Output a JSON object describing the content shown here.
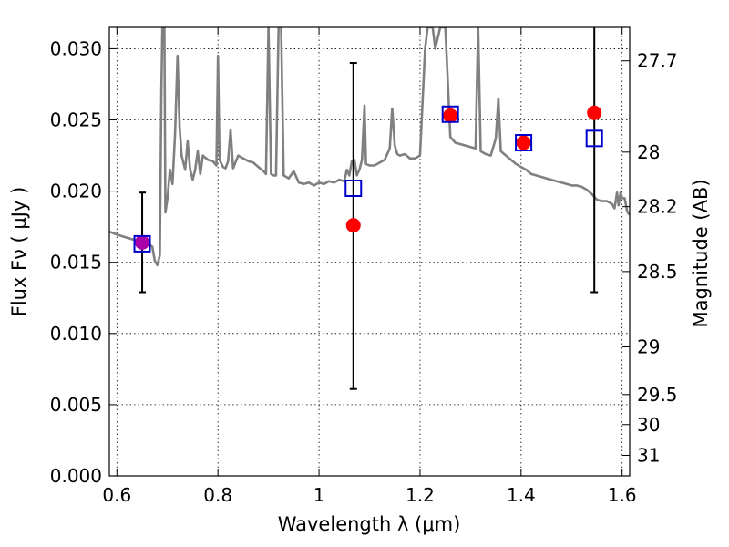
{
  "chart_data": {
    "type": "scatter",
    "xlabel": "Wavelength  λ (μm)",
    "ylabel": "Flux  Fν  ( μJy )",
    "y2label": "Magnitude (AB)",
    "xlim": [
      0.585,
      1.615
    ],
    "ylim": [
      0.0,
      0.0315
    ],
    "grid": true,
    "grid_style": "dotted",
    "x_ticks": [
      {
        "value": 0.6,
        "label": "0.6"
      },
      {
        "value": 0.8,
        "label": "0.8"
      },
      {
        "value": 1.0,
        "label": "1"
      },
      {
        "value": 1.2,
        "label": "1.2"
      },
      {
        "value": 1.4,
        "label": "1.4"
      },
      {
        "value": 1.6,
        "label": "1.6"
      }
    ],
    "y_ticks": [
      {
        "value": 0.0,
        "label": "0.000"
      },
      {
        "value": 0.005,
        "label": "0.005"
      },
      {
        "value": 0.01,
        "label": "0.010"
      },
      {
        "value": 0.015,
        "label": "0.015"
      },
      {
        "value": 0.02,
        "label": "0.020"
      },
      {
        "value": 0.025,
        "label": "0.025"
      },
      {
        "value": 0.03,
        "label": "0.030"
      }
    ],
    "y2_ticks": [
      {
        "flux": 0.02915,
        "label": "27.7"
      },
      {
        "flux": 0.02274,
        "label": "28"
      },
      {
        "flux": 0.01891,
        "label": "28.2"
      },
      {
        "flux": 0.01435,
        "label": "28.5"
      },
      {
        "flux": 0.00906,
        "label": "29"
      },
      {
        "flux": 0.00571,
        "label": "29.5"
      },
      {
        "flux": 0.0036,
        "label": "30"
      },
      {
        "flux": 0.00144,
        "label": "31"
      }
    ],
    "colors": {
      "model": "#808080",
      "observed": "#ff0000",
      "observed_v": "#aa00aa",
      "model_photometry": "#0000cc",
      "errorbar": "#000000",
      "frame": "#000000"
    },
    "series": [
      {
        "kind": "line",
        "points": [
          [
            0.585,
            0.01715
          ],
          [
            0.6,
            0.01695
          ],
          [
            0.62,
            0.01672
          ],
          [
            0.64,
            0.01652
          ],
          [
            0.66,
            0.01635
          ],
          [
            0.67,
            0.0161
          ],
          [
            0.675,
            0.0151
          ],
          [
            0.68,
            0.0148
          ],
          [
            0.685,
            0.0155
          ],
          [
            0.688,
            0.027
          ],
          [
            0.69,
            0.0315
          ],
          [
            0.694,
            0.0315
          ],
          [
            0.696,
            0.0185
          ],
          [
            0.7,
            0.0195
          ],
          [
            0.705,
            0.0215
          ],
          [
            0.71,
            0.0205
          ],
          [
            0.715,
            0.024
          ],
          [
            0.72,
            0.0295
          ],
          [
            0.724,
            0.0245
          ],
          [
            0.728,
            0.0225
          ],
          [
            0.735,
            0.0215
          ],
          [
            0.74,
            0.0235
          ],
          [
            0.745,
            0.0215
          ],
          [
            0.75,
            0.0208
          ],
          [
            0.755,
            0.0215
          ],
          [
            0.76,
            0.0228
          ],
          [
            0.765,
            0.0212
          ],
          [
            0.77,
            0.0225
          ],
          [
            0.78,
            0.0222
          ],
          [
            0.79,
            0.0221
          ],
          [
            0.797,
            0.0218
          ],
          [
            0.8,
            0.0295
          ],
          [
            0.803,
            0.0222
          ],
          [
            0.81,
            0.0217
          ],
          [
            0.815,
            0.0216
          ],
          [
            0.82,
            0.0221
          ],
          [
            0.825,
            0.0243
          ],
          [
            0.83,
            0.0216
          ],
          [
            0.84,
            0.0225
          ],
          [
            0.85,
            0.0223
          ],
          [
            0.86,
            0.0221
          ],
          [
            0.87,
            0.022
          ],
          [
            0.88,
            0.0217
          ],
          [
            0.89,
            0.0214
          ],
          [
            0.895,
            0.0212
          ],
          [
            0.9,
            0.0315
          ],
          [
            0.905,
            0.0212
          ],
          [
            0.91,
            0.0211
          ],
          [
            0.915,
            0.0211
          ],
          [
            0.92,
            0.0315
          ],
          [
            0.925,
            0.0315
          ],
          [
            0.93,
            0.0211
          ],
          [
            0.94,
            0.0209
          ],
          [
            0.95,
            0.0214
          ],
          [
            0.96,
            0.0206
          ],
          [
            0.97,
            0.0205
          ],
          [
            0.98,
            0.0206
          ],
          [
            0.99,
            0.0204
          ],
          [
            1.0,
            0.0206
          ],
          [
            1.01,
            0.0205
          ],
          [
            1.02,
            0.0207
          ],
          [
            1.03,
            0.0206
          ],
          [
            1.04,
            0.0208
          ],
          [
            1.05,
            0.0207
          ],
          [
            1.055,
            0.0215
          ],
          [
            1.06,
            0.0211
          ],
          [
            1.065,
            0.0221
          ],
          [
            1.07,
            0.0222
          ],
          [
            1.075,
            0.0211
          ],
          [
            1.08,
            0.0215
          ],
          [
            1.085,
            0.0222
          ],
          [
            1.09,
            0.026
          ],
          [
            1.093,
            0.0219
          ],
          [
            1.1,
            0.0218
          ],
          [
            1.11,
            0.0218
          ],
          [
            1.12,
            0.022
          ],
          [
            1.13,
            0.0222
          ],
          [
            1.14,
            0.023
          ],
          [
            1.145,
            0.0258
          ],
          [
            1.15,
            0.0232
          ],
          [
            1.155,
            0.0226
          ],
          [
            1.16,
            0.0225
          ],
          [
            1.17,
            0.0226
          ],
          [
            1.18,
            0.0223
          ],
          [
            1.19,
            0.0223
          ],
          [
            1.2,
            0.0225
          ],
          [
            1.21,
            0.03
          ],
          [
            1.215,
            0.0315
          ],
          [
            1.225,
            0.0315
          ],
          [
            1.23,
            0.03
          ],
          [
            1.24,
            0.0315
          ],
          [
            1.25,
            0.0315
          ],
          [
            1.26,
            0.0238
          ],
          [
            1.27,
            0.0234
          ],
          [
            1.28,
            0.0233
          ],
          [
            1.29,
            0.0232
          ],
          [
            1.3,
            0.0231
          ],
          [
            1.31,
            0.023
          ],
          [
            1.315,
            0.0315
          ],
          [
            1.32,
            0.0228
          ],
          [
            1.33,
            0.0226
          ],
          [
            1.34,
            0.0225
          ],
          [
            1.35,
            0.0237
          ],
          [
            1.355,
            0.0265
          ],
          [
            1.36,
            0.0228
          ],
          [
            1.37,
            0.0225
          ],
          [
            1.38,
            0.0222
          ],
          [
            1.39,
            0.0219
          ],
          [
            1.4,
            0.0217
          ],
          [
            1.41,
            0.0215
          ],
          [
            1.42,
            0.0212
          ],
          [
            1.43,
            0.0211
          ],
          [
            1.44,
            0.021
          ],
          [
            1.45,
            0.0209
          ],
          [
            1.46,
            0.0208
          ],
          [
            1.47,
            0.0207
          ],
          [
            1.48,
            0.0206
          ],
          [
            1.49,
            0.0205
          ],
          [
            1.5,
            0.0204
          ],
          [
            1.51,
            0.0204
          ],
          [
            1.52,
            0.0203
          ],
          [
            1.53,
            0.0201
          ],
          [
            1.54,
            0.0198
          ],
          [
            1.545,
            0.0196
          ],
          [
            1.55,
            0.0194
          ],
          [
            1.56,
            0.0193
          ],
          [
            1.57,
            0.0193
          ],
          [
            1.58,
            0.0191
          ],
          [
            1.585,
            0.0188
          ],
          [
            1.59,
            0.0199
          ],
          [
            1.593,
            0.019
          ],
          [
            1.597,
            0.0199
          ],
          [
            1.6,
            0.0195
          ],
          [
            1.605,
            0.0195
          ],
          [
            1.61,
            0.0186
          ],
          [
            1.613,
            0.0184
          ],
          [
            1.615,
            0.0185
          ]
        ]
      },
      {
        "kind": "errorbar",
        "points": [
          {
            "x": 0.65,
            "y": 0.0164,
            "lo": 0.0129,
            "hi": 0.0199
          },
          {
            "x": 1.068,
            "y": 0.0176,
            "lo": 0.0061,
            "hi": 0.029
          },
          {
            "x": 1.545,
            "y": 0.0255,
            "lo": 0.0129,
            "hi": 0.0315
          }
        ]
      },
      {
        "kind": "markers-circle",
        "points": [
          [
            0.65,
            0.0164
          ],
          [
            1.068,
            0.0176
          ],
          [
            1.26,
            0.0253
          ],
          [
            1.405,
            0.0234
          ],
          [
            1.545,
            0.0255
          ]
        ],
        "point_colors": [
          "#aa00aa",
          "#ff0000",
          "#ff0000",
          "#ff0000",
          "#ff0000"
        ]
      },
      {
        "kind": "markers-square",
        "points": [
          [
            0.65,
            0.0163
          ],
          [
            1.068,
            0.0202
          ],
          [
            1.26,
            0.0254
          ],
          [
            1.405,
            0.0234
          ],
          [
            1.545,
            0.0237
          ]
        ]
      }
    ]
  }
}
